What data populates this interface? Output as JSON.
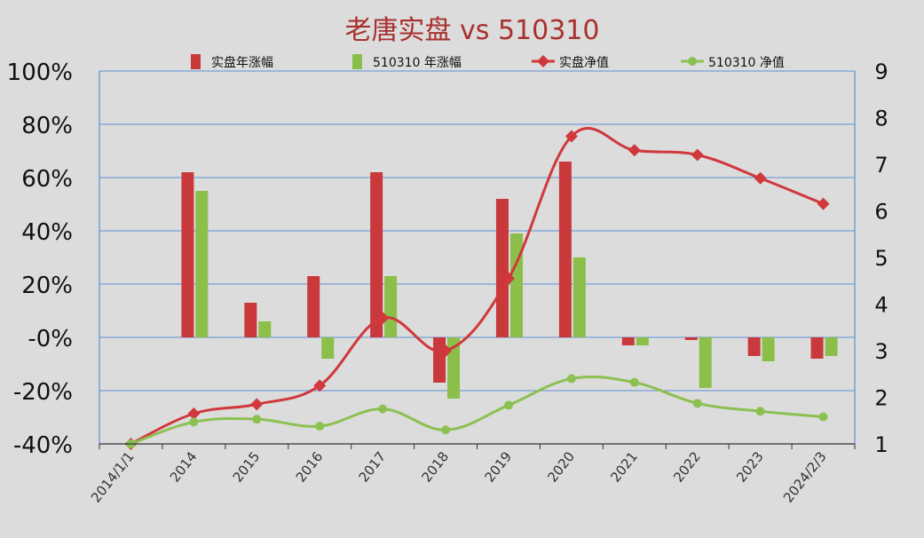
{
  "chart_data": {
    "type": "bar+line",
    "title": "老唐实盘 vs 510310",
    "categories": [
      "2014/1/1",
      "2014",
      "2015",
      "2016",
      "2017",
      "2018",
      "2019",
      "2020",
      "2021",
      "2022",
      "2023",
      "2024/2/3"
    ],
    "bar_series": [
      {
        "name": "实盘年涨幅",
        "color": "#c9393b",
        "values": [
          null,
          62,
          13,
          23,
          62,
          -17,
          52,
          66,
          -3,
          -1,
          -7,
          -8
        ]
      },
      {
        "name": "510310 年涨幅",
        "color": "#8cbf49",
        "values": [
          null,
          55,
          6,
          -8,
          23,
          -23,
          39,
          30,
          -3,
          -19,
          -9,
          -7
        ]
      }
    ],
    "line_series": [
      {
        "name": "实盘净值",
        "color": "#d0383c",
        "marker": "diamond",
        "values": [
          1.0,
          1.65,
          1.85,
          2.25,
          3.7,
          3.0,
          4.55,
          7.6,
          7.3,
          7.2,
          6.7,
          6.15
        ]
      },
      {
        "name": "510310 净值",
        "color": "#8cc152",
        "marker": "circle",
        "values": [
          1.0,
          1.47,
          1.53,
          1.38,
          1.75,
          1.3,
          1.83,
          2.4,
          2.32,
          1.87,
          1.7,
          1.58
        ]
      }
    ],
    "y_left": {
      "min": -40,
      "max": 100,
      "step": 20,
      "tick_labels": [
        "-40%",
        "-20%",
        "-0%",
        "20%",
        "40%",
        "60%",
        "80%",
        "100%"
      ]
    },
    "y_right": {
      "min": 1,
      "max": 9,
      "step": 1,
      "tick_labels": [
        "1",
        "2",
        "3",
        "4",
        "5",
        "6",
        "7",
        "8",
        "9"
      ]
    },
    "grid": true,
    "legend_position": "top",
    "colors": {
      "title": "#a8312f",
      "grid": "#5b8fd6",
      "axis_text": "#111111"
    }
  }
}
